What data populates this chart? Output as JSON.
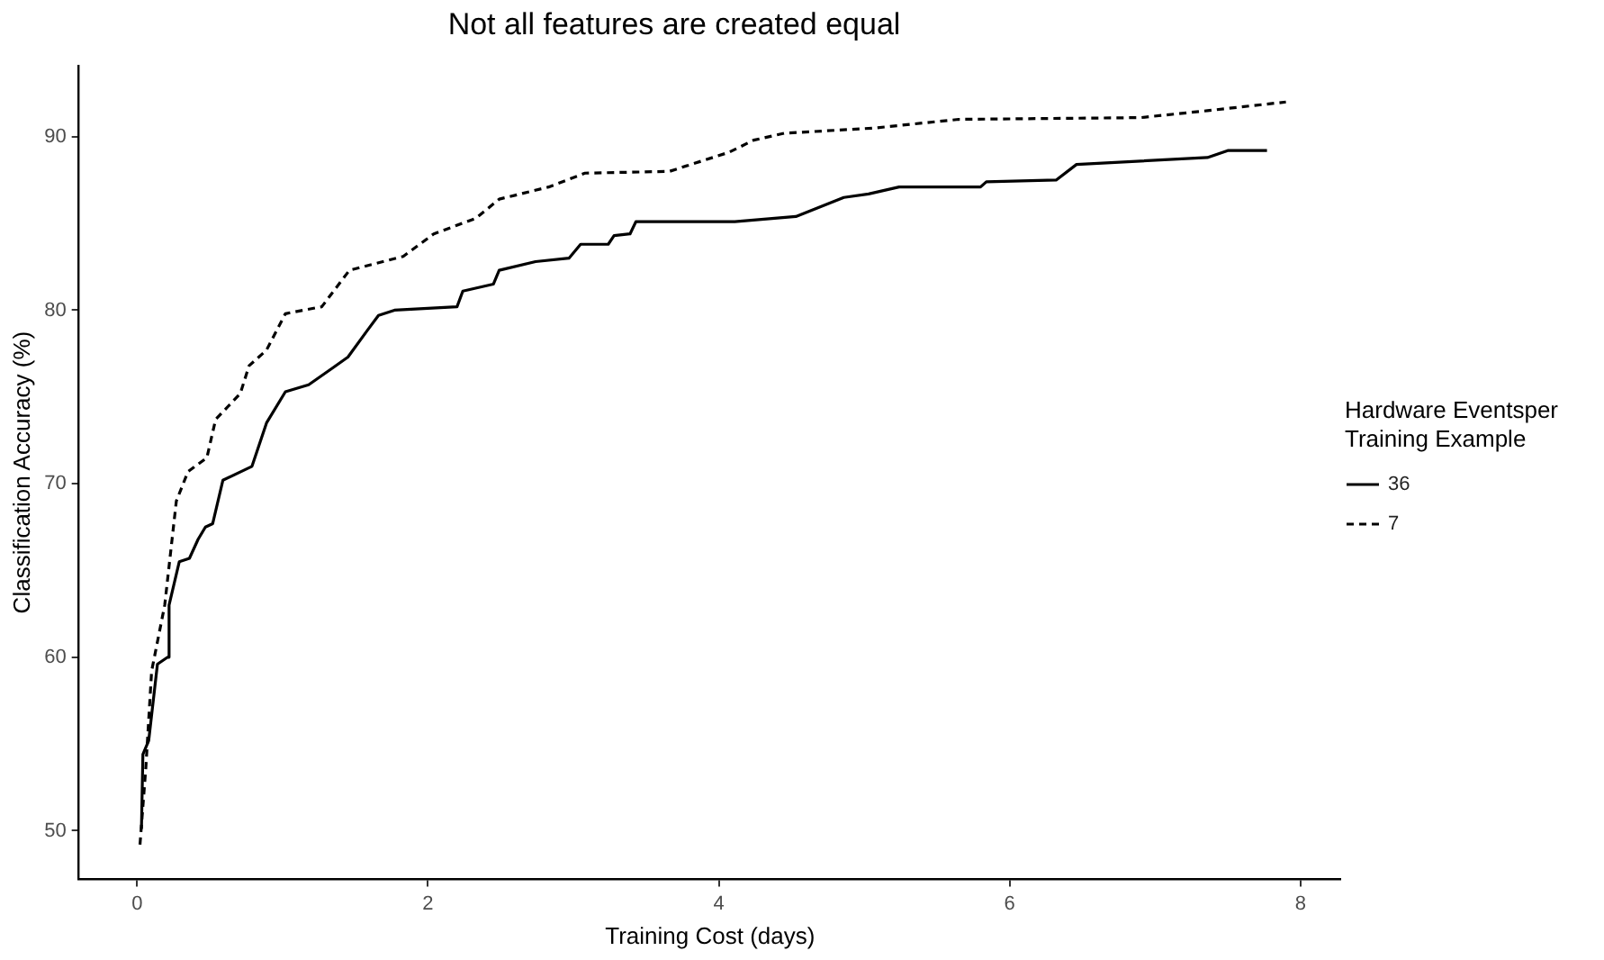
{
  "chart_data": {
    "type": "line",
    "title": "Not all features are created equal",
    "xlabel": "Training Cost (days)",
    "ylabel": "Classification Accuracy (%)",
    "legend_title": "Hardware Eventsper Training Example",
    "legend": "right",
    "grid": false,
    "marker": "none",
    "xlim": [
      -0.4,
      8.28
    ],
    "ylim": [
      47.2,
      94.1
    ],
    "xticks": [
      0,
      2,
      4,
      6,
      8
    ],
    "yticks": [
      50,
      60,
      70,
      80,
      90
    ],
    "series": [
      {
        "name": "36",
        "color": "#000000",
        "line_style": "solid",
        "x": [
          0.03,
          0.04,
          0.08,
          0.14,
          0.21,
          0.22,
          0.29,
          0.36,
          0.42,
          0.47,
          0.52,
          0.59,
          0.79,
          0.89,
          1.02,
          1.18,
          1.35,
          1.45,
          1.58,
          1.66,
          1.77,
          2.2,
          2.24,
          2.45,
          2.49,
          2.74,
          2.97,
          3.05,
          3.24,
          3.28,
          3.39,
          3.43,
          4.11,
          4.53,
          4.86,
          5.03,
          5.24,
          5.8,
          5.84,
          6.32,
          6.46,
          7.36,
          7.5,
          7.77
        ],
        "values": [
          50.1,
          54.4,
          55.2,
          59.6,
          60.0,
          63.0,
          65.5,
          65.7,
          66.8,
          67.5,
          67.7,
          70.2,
          71.0,
          73.5,
          75.3,
          75.7,
          76.7,
          77.3,
          78.8,
          79.7,
          80.0,
          80.2,
          81.1,
          81.5,
          82.3,
          82.8,
          83.0,
          83.8,
          83.8,
          84.3,
          84.4,
          85.1,
          85.1,
          85.4,
          86.5,
          86.7,
          87.1,
          87.1,
          87.4,
          87.5,
          88.4,
          88.8,
          89.2,
          89.2
        ]
      },
      {
        "name": "7",
        "color": "#000000",
        "line_style": "dashed",
        "x": [
          0.02,
          0.06,
          0.1,
          0.19,
          0.27,
          0.35,
          0.48,
          0.54,
          0.71,
          0.77,
          0.89,
          1.02,
          1.27,
          1.46,
          1.83,
          2.04,
          2.33,
          2.49,
          2.83,
          3.08,
          3.66,
          4.07,
          4.24,
          4.45,
          5.07,
          5.65,
          6.9,
          7.36,
          7.9
        ],
        "values": [
          49.2,
          53.6,
          59.2,
          63.0,
          69.0,
          70.7,
          71.5,
          73.7,
          75.2,
          76.8,
          77.7,
          79.8,
          80.2,
          82.3,
          83.1,
          84.4,
          85.3,
          86.4,
          87.1,
          87.9,
          88.0,
          89.1,
          89.8,
          90.2,
          90.5,
          91.0,
          91.1,
          91.5,
          92.0
        ]
      }
    ]
  }
}
